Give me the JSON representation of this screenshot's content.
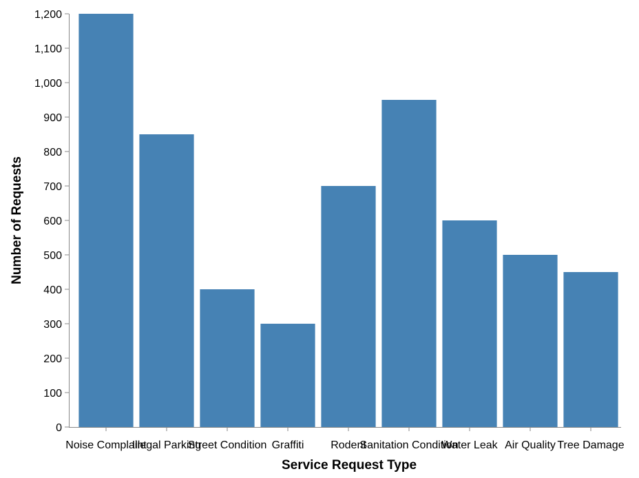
{
  "chart_data": {
    "type": "bar",
    "title": "",
    "xlabel": "Service Request Type",
    "ylabel": "Number of Requests",
    "categories": [
      "Noise Complaint",
      "Illegal Parking",
      "Street Condition",
      "Graffiti",
      "Rodent",
      "Sanitation Condition",
      "Water Leak",
      "Air Quality",
      "Tree Damage"
    ],
    "values": [
      1200,
      850,
      400,
      300,
      700,
      950,
      600,
      500,
      450
    ],
    "ylim": [
      0,
      1200
    ],
    "yticks": [
      0,
      100,
      200,
      300,
      400,
      500,
      600,
      700,
      800,
      900,
      1000,
      1100,
      1200
    ],
    "ytick_labels": [
      "0",
      "100",
      "200",
      "300",
      "400",
      "500",
      "600",
      "700",
      "800",
      "900",
      "1,000",
      "1,100",
      "1,200"
    ],
    "grid": false,
    "legend": "none",
    "bar_color": "#4682b4"
  }
}
